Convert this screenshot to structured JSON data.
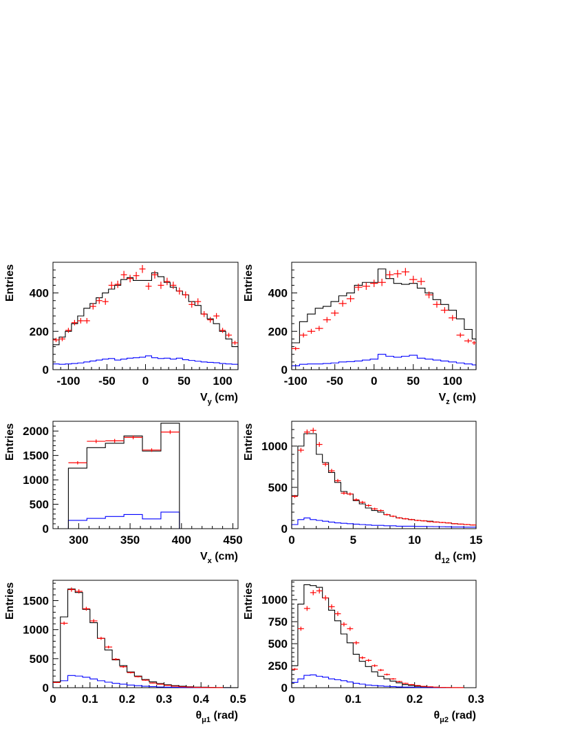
{
  "chart_data": [
    {
      "type": "histogram",
      "xlabel": "V",
      "xsub": "y",
      "xunit": " (cm)",
      "ylabel": "Entries",
      "xlim": [
        -120,
        120
      ],
      "ylim": [
        0,
        560
      ],
      "xticks": [
        -100,
        -50,
        0,
        50,
        100
      ],
      "yticks": [
        0,
        200,
        400
      ],
      "bin_edges": [
        -120,
        -112,
        -104,
        -96,
        -88,
        -80,
        -72,
        -64,
        -56,
        -48,
        -40,
        -32,
        -24,
        -16,
        -8,
        0,
        8,
        16,
        24,
        32,
        40,
        48,
        56,
        64,
        72,
        80,
        88,
        96,
        104,
        112,
        120
      ],
      "mc_total": [
        130,
        170,
        200,
        240,
        280,
        320,
        345,
        375,
        400,
        420,
        440,
        470,
        480,
        465,
        465,
        465,
        505,
        485,
        455,
        430,
        410,
        390,
        355,
        335,
        290,
        265,
        240,
        200,
        160,
        120
      ],
      "mc_background": [
        30,
        28,
        30,
        32,
        35,
        40,
        45,
        50,
        55,
        58,
        50,
        55,
        60,
        62,
        65,
        72,
        62,
        58,
        60,
        55,
        60,
        52,
        48,
        44,
        40,
        38,
        36,
        32,
        30,
        28
      ],
      "data": [
        155,
        160,
        205,
        245,
        255,
        255,
        330,
        360,
        355,
        440,
        445,
        495,
        475,
        490,
        525,
        435,
        495,
        440,
        460,
        440,
        410,
        390,
        340,
        355,
        290,
        260,
        280,
        205,
        180,
        140
      ]
    },
    {
      "type": "histogram",
      "xlabel": "V",
      "xsub": "z",
      "xunit": " (cm)",
      "ylabel": "Entries",
      "xlim": [
        -105,
        130
      ],
      "ylim": [
        0,
        560
      ],
      "xticks": [
        -100,
        -50,
        0,
        50,
        100
      ],
      "yticks": [
        0,
        200,
        400
      ],
      "bin_edges": [
        -105,
        -95,
        -85,
        -75,
        -65,
        -55,
        -45,
        -35,
        -25,
        -15,
        -5,
        5,
        15,
        25,
        35,
        45,
        55,
        65,
        75,
        85,
        95,
        105,
        115,
        125,
        130
      ],
      "mc_total": [
        140,
        250,
        290,
        320,
        330,
        355,
        385,
        400,
        440,
        455,
        455,
        525,
        475,
        450,
        445,
        450,
        425,
        400,
        365,
        340,
        310,
        265,
        210,
        160
      ],
      "mc_background": [
        20,
        28,
        30,
        30,
        32,
        35,
        40,
        42,
        45,
        50,
        55,
        80,
        70,
        65,
        70,
        75,
        60,
        55,
        50,
        45,
        40,
        35,
        30,
        25
      ],
      "data": [
        110,
        180,
        200,
        215,
        260,
        295,
        345,
        370,
        430,
        435,
        450,
        455,
        495,
        500,
        510,
        470,
        460,
        390,
        340,
        310,
        270,
        180,
        150,
        140
      ]
    },
    {
      "type": "histogram",
      "xlabel": "V",
      "xsub": "x",
      "xunit": " (cm)",
      "ylabel": "Entries",
      "xlim": [
        275,
        455
      ],
      "ylim": [
        0,
        2200
      ],
      "xticks": [
        300,
        350,
        400,
        450
      ],
      "yticks": [
        0,
        500,
        1000,
        1500,
        2000
      ],
      "bin_edges": [
        275,
        290,
        308,
        326,
        344,
        362,
        380,
        398,
        416,
        434,
        455
      ],
      "mc_total": [
        0,
        1240,
        1660,
        1750,
        1900,
        1590,
        2160,
        0,
        0,
        0
      ],
      "mc_background": [
        0,
        170,
        210,
        250,
        290,
        200,
        340,
        0,
        0,
        0
      ],
      "data": [
        null,
        1350,
        1790,
        1800,
        1870,
        1610,
        1980,
        null,
        null,
        null
      ]
    },
    {
      "type": "histogram",
      "xlabel": "d",
      "xsub": "12",
      "xunit": " (cm)",
      "ylabel": "Entries",
      "xlim": [
        0,
        15
      ],
      "ylim": [
        0,
        1300
      ],
      "xticks": [
        0,
        5,
        10,
        15
      ],
      "yticks": [
        0,
        500,
        1000
      ],
      "bin_edges": [
        0,
        0.5,
        1,
        1.5,
        2,
        2.5,
        3,
        3.5,
        4,
        4.5,
        5,
        5.5,
        6,
        6.5,
        7,
        7.5,
        8,
        8.5,
        9,
        9.5,
        10,
        10.5,
        11,
        11.5,
        12,
        12.5,
        13,
        13.5,
        14,
        14.5,
        15
      ],
      "mc_total": [
        400,
        1000,
        1150,
        1150,
        900,
        800,
        680,
        560,
        450,
        420,
        340,
        300,
        250,
        220,
        200,
        170,
        150,
        130,
        120,
        110,
        100,
        95,
        90,
        80,
        75,
        70,
        60,
        55,
        50,
        45
      ],
      "mc_background": [
        50,
        110,
        130,
        110,
        100,
        90,
        80,
        70,
        65,
        60,
        55,
        50,
        45,
        40,
        40,
        35,
        35,
        30,
        30,
        30,
        28,
        28,
        26,
        25,
        24,
        22,
        20,
        20,
        18,
        18
      ],
      "data": [
        390,
        950,
        1170,
        1190,
        1020,
        780,
        700,
        580,
        430,
        420,
        350,
        320,
        280,
        240,
        220,
        170,
        150,
        130,
        120,
        110,
        100,
        95,
        85,
        80,
        75,
        70,
        60,
        55,
        50,
        45
      ]
    },
    {
      "type": "histogram",
      "xlabel": "θ",
      "xsub": "μ1",
      "xunit": " (rad)",
      "ylabel": "Entries",
      "xlim": [
        0,
        0.5
      ],
      "ylim": [
        0,
        1850
      ],
      "xticks": [
        0,
        0.1,
        0.2,
        0.3,
        0.4,
        0.5
      ],
      "yticks": [
        0,
        500,
        1000,
        1500
      ],
      "bin_edges": [
        0,
        0.02,
        0.04,
        0.06,
        0.08,
        0.1,
        0.12,
        0.14,
        0.16,
        0.18,
        0.2,
        0.22,
        0.24,
        0.26,
        0.28,
        0.3,
        0.32,
        0.34,
        0.36,
        0.38,
        0.4,
        0.42,
        0.44,
        0.46,
        0.48,
        0.5
      ],
      "mc_total": [
        100,
        1220,
        1700,
        1640,
        1350,
        1120,
        850,
        650,
        480,
        380,
        270,
        200,
        140,
        100,
        70,
        50,
        35,
        25,
        15,
        10,
        8,
        5,
        3,
        2,
        1
      ],
      "mc_background": [
        100,
        120,
        210,
        200,
        180,
        150,
        120,
        95,
        75,
        60,
        45,
        35,
        25,
        18,
        12,
        8,
        6,
        4,
        3,
        2,
        1,
        1,
        0,
        0,
        0
      ],
      "data": [
        90,
        1110,
        1690,
        1660,
        1360,
        1150,
        850,
        700,
        490,
        360,
        260,
        190,
        130,
        80,
        60,
        40,
        25,
        15,
        10,
        5,
        3,
        2,
        1,
        0,
        0
      ]
    },
    {
      "type": "histogram",
      "xlabel": "θ",
      "xsub": "μ2",
      "xunit": " (rad)",
      "ylabel": "Entries",
      "xlim": [
        0,
        0.3
      ],
      "ylim": [
        0,
        1220
      ],
      "xticks": [
        0,
        0.1,
        0.2,
        0.3
      ],
      "yticks": [
        0,
        250,
        500,
        750,
        1000
      ],
      "bin_edges": [
        0,
        0.01,
        0.02,
        0.03,
        0.04,
        0.05,
        0.06,
        0.07,
        0.08,
        0.09,
        0.1,
        0.11,
        0.12,
        0.13,
        0.14,
        0.15,
        0.16,
        0.17,
        0.18,
        0.19,
        0.2,
        0.21,
        0.22,
        0.23,
        0.24,
        0.25,
        0.26,
        0.27,
        0.28,
        0.29,
        0.3
      ],
      "mc_total": [
        250,
        950,
        1170,
        1160,
        1140,
        1020,
        880,
        760,
        610,
        510,
        380,
        300,
        240,
        180,
        130,
        100,
        75,
        55,
        35,
        25,
        15,
        10,
        8,
        5,
        3,
        2,
        1,
        1,
        0,
        0
      ],
      "mc_background": [
        60,
        100,
        140,
        145,
        130,
        120,
        100,
        90,
        80,
        65,
        50,
        40,
        30,
        25,
        20,
        15,
        12,
        8,
        6,
        5,
        3,
        2,
        2,
        1,
        1,
        0,
        0,
        0,
        0,
        0
      ],
      "data": [
        210,
        670,
        900,
        1080,
        1100,
        1020,
        920,
        840,
        720,
        670,
        510,
        340,
        310,
        250,
        200,
        150,
        100,
        70,
        50,
        35,
        25,
        15,
        10,
        5,
        3,
        2,
        1,
        1,
        0,
        0
      ]
    }
  ],
  "colors": {
    "mc_total": "#000000",
    "mc_background": "#0000ff",
    "data": "#ff0000",
    "axis": "#000000"
  }
}
